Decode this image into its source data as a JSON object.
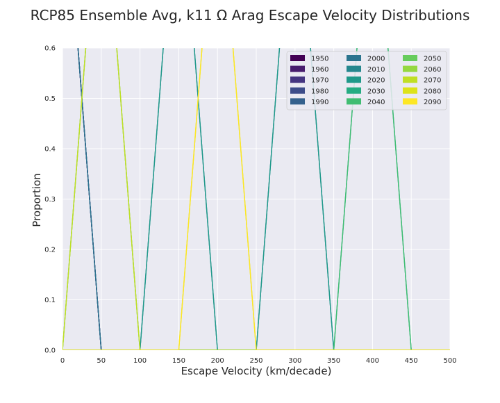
{
  "chart_data": {
    "type": "line",
    "title": "RCP85 Ensemble Avg, k11 Ω Arag Escape Velocity Distributions",
    "xlabel": "Escape Velocity (km/decade)",
    "ylabel": "Proportion",
    "xlim": [
      0,
      500
    ],
    "ylim": [
      0,
      0.6
    ],
    "xticks": [
      "0",
      "50",
      "100",
      "150",
      "200",
      "250",
      "300",
      "350",
      "400",
      "450",
      "500"
    ],
    "yticks": [
      "0.0",
      "0.1",
      "0.2",
      "0.3",
      "0.4",
      "0.5",
      "0.6"
    ],
    "grid": true,
    "legend_position": "top-right",
    "legend_columns": 3,
    "series": [
      {
        "name": "1950",
        "color": "#440154",
        "x": [
          0,
          50,
          100,
          500
        ],
        "y": [
          1.0,
          0.0,
          0.0,
          0.0
        ]
      },
      {
        "name": "1960",
        "color": "#481c6e",
        "x": [
          0,
          50,
          100,
          500
        ],
        "y": [
          1.0,
          0.0,
          0.0,
          0.0
        ]
      },
      {
        "name": "1970",
        "color": "#453581",
        "x": [
          0,
          50,
          100,
          500
        ],
        "y": [
          1.0,
          0.0,
          0.0,
          0.0
        ]
      },
      {
        "name": "1980",
        "color": "#3d4d8a",
        "x": [
          0,
          50,
          100,
          500
        ],
        "y": [
          1.0,
          0.0,
          0.0,
          0.0
        ]
      },
      {
        "name": "1990",
        "color": "#34618d",
        "x": [
          0,
          50,
          100,
          500
        ],
        "y": [
          1.0,
          0.0,
          0.0,
          0.0
        ]
      },
      {
        "name": "2000",
        "color": "#2b748e",
        "x": [
          0,
          50,
          100,
          500
        ],
        "y": [
          1.0,
          0.0,
          0.0,
          0.0
        ]
      },
      {
        "name": "2010",
        "color": "#24878e",
        "x": [
          0,
          50,
          100,
          150,
          200,
          250,
          300,
          350,
          400,
          500
        ],
        "y": [
          0.0,
          0.0,
          0.0,
          1.0,
          0.0,
          0.0,
          1.0,
          0.0,
          0.0,
          0.0
        ]
      },
      {
        "name": "2020",
        "color": "#1f998a",
        "x": [
          0,
          50,
          100,
          150,
          200,
          250,
          300,
          350,
          400,
          500
        ],
        "y": [
          0.0,
          0.0,
          0.0,
          1.0,
          0.0,
          0.0,
          1.0,
          0.0,
          0.0,
          0.0
        ]
      },
      {
        "name": "2030",
        "color": "#25ac82",
        "x": [
          0,
          50,
          100,
          150,
          200,
          250,
          300,
          350,
          400,
          450,
          500
        ],
        "y": [
          0.0,
          0.0,
          0.0,
          0.0,
          0.0,
          0.0,
          0.0,
          0.0,
          1.0,
          0.0,
          0.0
        ]
      },
      {
        "name": "2040",
        "color": "#40bd72",
        "x": [
          0,
          50,
          100,
          150,
          200,
          250,
          300,
          350,
          400,
          450,
          500
        ],
        "y": [
          0.0,
          0.0,
          0.0,
          0.0,
          0.0,
          0.0,
          0.0,
          0.0,
          1.0,
          0.0,
          0.0
        ]
      },
      {
        "name": "2050",
        "color": "#67cc5c",
        "x": [
          0,
          50,
          100,
          500
        ],
        "y": [
          0.0,
          1.0,
          0.0,
          0.0
        ]
      },
      {
        "name": "2060",
        "color": "#95d840",
        "x": [
          0,
          50,
          100,
          500
        ],
        "y": [
          0.0,
          1.0,
          0.0,
          0.0
        ]
      },
      {
        "name": "2070",
        "color": "#c0df25",
        "x": [
          0,
          50,
          100,
          500
        ],
        "y": [
          0.0,
          1.0,
          0.0,
          0.0
        ]
      },
      {
        "name": "2080",
        "color": "#dde318",
        "x": [
          0,
          150,
          200,
          250,
          500
        ],
        "y": [
          0.0,
          0.0,
          1.0,
          0.0,
          0.0
        ]
      },
      {
        "name": "2090",
        "color": "#fde725",
        "x": [
          0,
          150,
          200,
          250,
          500
        ],
        "y": [
          0.0,
          0.0,
          1.0,
          0.0,
          0.0
        ]
      }
    ]
  }
}
